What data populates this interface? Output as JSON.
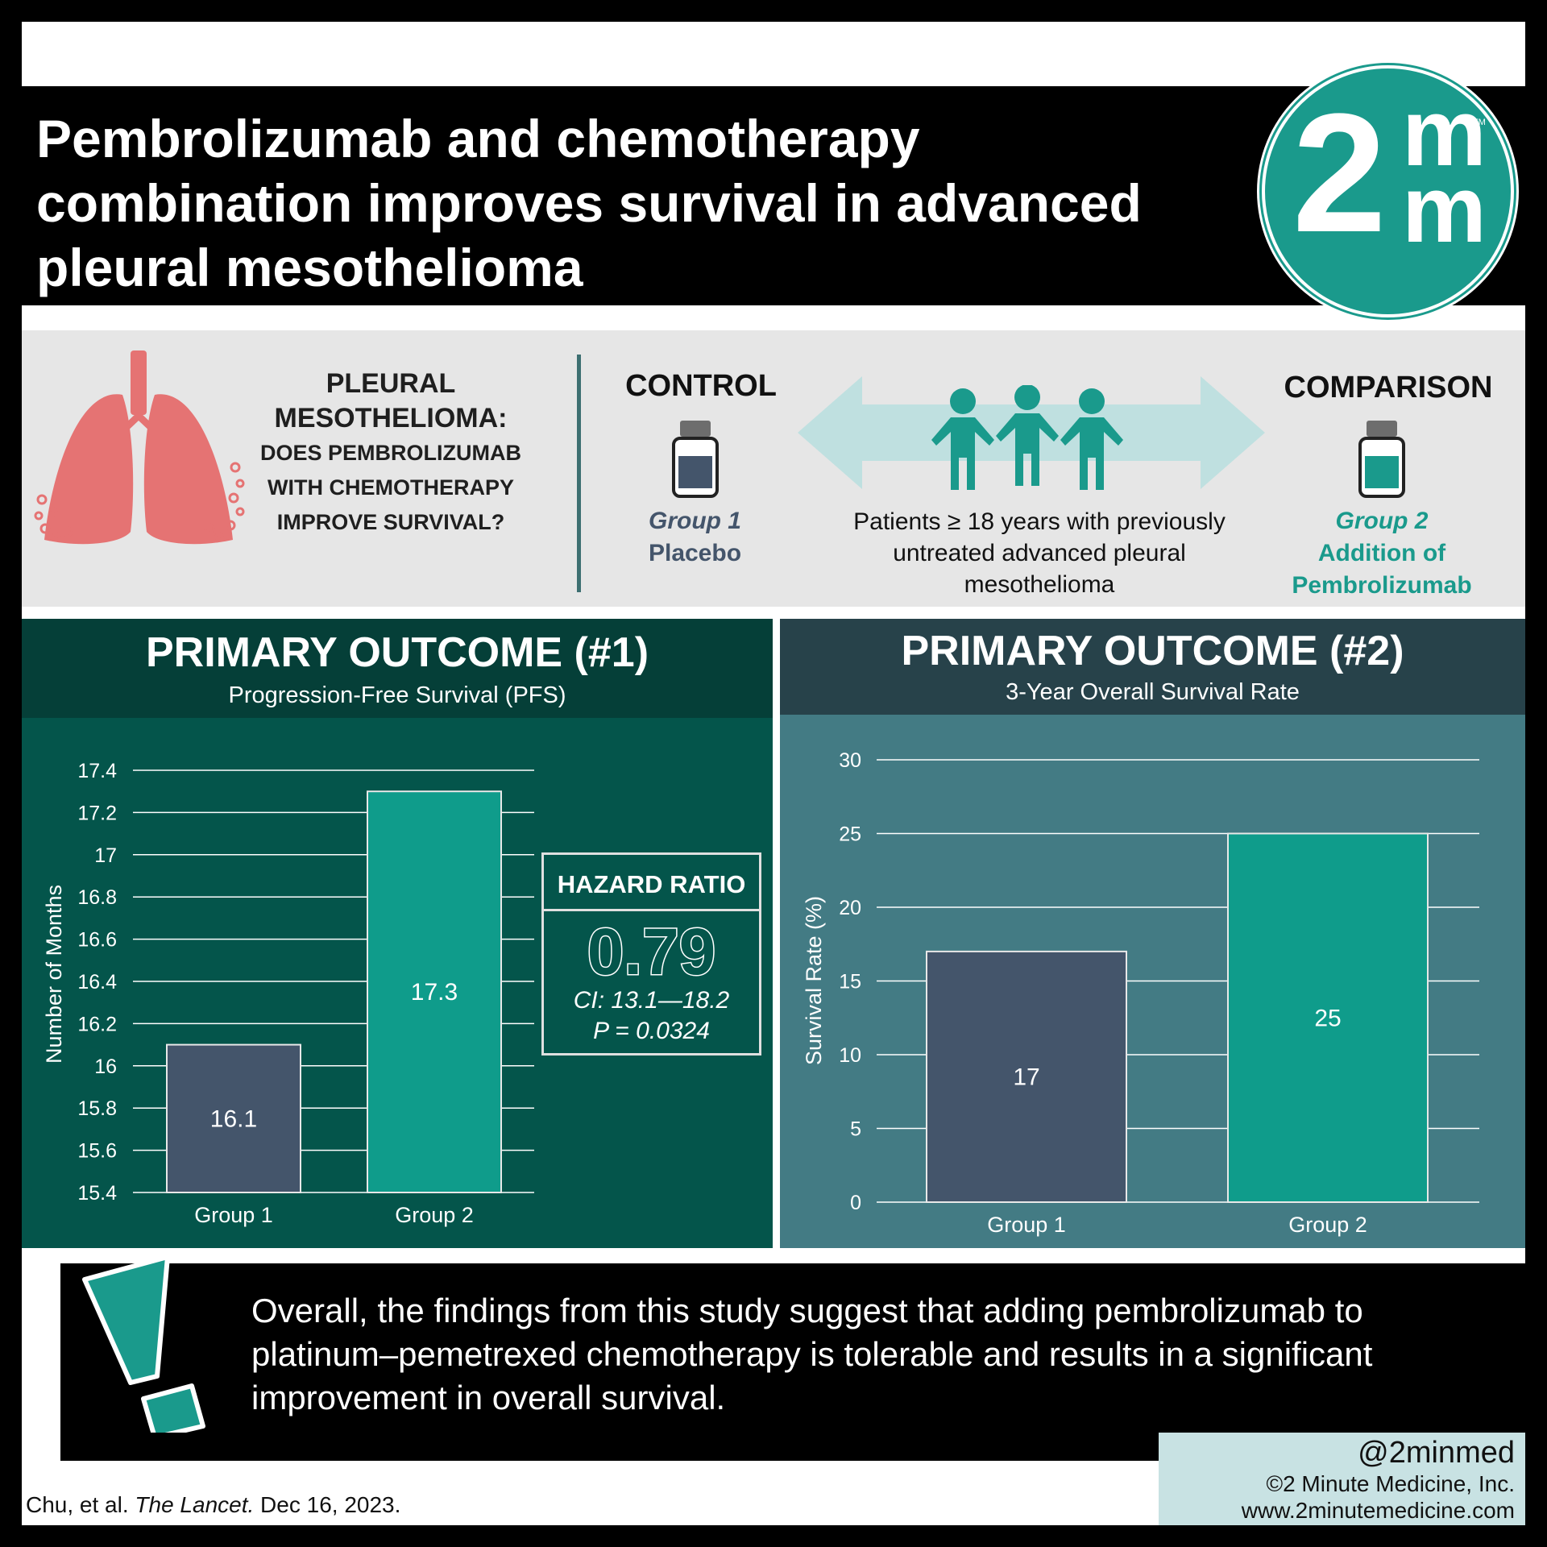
{
  "header": {
    "title_lines": [
      "Pembrolizumab and chemotherapy",
      "combination improves survival in advanced",
      "pleural mesothelioma"
    ],
    "logo": {
      "digit": "2",
      "letter_top": "m",
      "letter_bottom": "m",
      "trademark": "TM"
    }
  },
  "study": {
    "question_line1": "PLEURAL",
    "question_line2": "MESOTHELIOMA:",
    "question_line3": "DOES PEMBROLIZUMAB",
    "question_line4": "WITH CHEMOTHERAPY",
    "question_line5": "IMPROVE SURVIVAL?",
    "control_heading": "CONTROL",
    "comparison_heading": "COMPARISON",
    "group1_name": "Group 1",
    "group1_desc": "Placebo",
    "group2_name": "Group 2",
    "group2_desc_line1": "Addition of",
    "group2_desc_line2": "Pembrolizumab",
    "patients_line1": "Patients ≥ 18 years with previously",
    "patients_line2": "untreated advanced pleural",
    "patients_line3": "mesothelioma",
    "icons": [
      "lungs-icon",
      "vial-icon",
      "double-arrow-icon",
      "people-icon"
    ]
  },
  "outcome1": {
    "title": "PRIMARY OUTCOME (#1)",
    "subtitle": "Progression-Free Survival (PFS)",
    "hazard": {
      "label": "HAZARD RATIO",
      "value": "0.79",
      "ci": "CI: 13.1—18.2",
      "p": "P = 0.0324"
    }
  },
  "outcome2": {
    "title": "PRIMARY OUTCOME (#2)",
    "subtitle": "3-Year Overall Survival Rate"
  },
  "chart_data": [
    {
      "type": "bar",
      "categories": [
        "Group 1",
        "Group 2"
      ],
      "values": [
        16.1,
        17.3
      ],
      "data_labels": [
        "16.1",
        "17.3"
      ],
      "ylabel": "Number of Months",
      "xlabel": "",
      "ylim": [
        15.4,
        17.4
      ],
      "yticks": [
        "15.4",
        "15.6",
        "15.8",
        "16",
        "16.2",
        "16.4",
        "16.6",
        "16.8",
        "17",
        "17.2",
        "17.4"
      ],
      "grid": true,
      "colors": [
        "#44556b",
        "#0f9c8b"
      ]
    },
    {
      "type": "bar",
      "categories": [
        "Group 1",
        "Group 2"
      ],
      "values": [
        17,
        25
      ],
      "data_labels": [
        "17",
        "25"
      ],
      "ylabel": "Survival Rate (%)",
      "xlabel": "",
      "ylim": [
        0,
        30
      ],
      "yticks": [
        "0",
        "5",
        "10",
        "15",
        "20",
        "25",
        "30"
      ],
      "grid": true,
      "colors": [
        "#44556b",
        "#0f9c8b"
      ]
    }
  ],
  "conclusion": {
    "lines": [
      "Overall, the findings from this study suggest that adding pembrolizumab to",
      "platinum–pemetrexed chemotherapy is tolerable and results in a significant",
      "improvement in overall survival."
    ]
  },
  "footer": {
    "citation_authors": "Chu, et al. ",
    "citation_journal": "The Lancet.",
    "citation_date": " Dec 16, 2023.",
    "handle": "@2minmed",
    "copyright": "©2 Minute Medicine, Inc.",
    "website": "www.2minutemedicine.com"
  },
  "colors": {
    "teal": "#1a9a8c",
    "slate": "#44556b",
    "panel1": "#04554b",
    "panel2": "#437b84"
  }
}
